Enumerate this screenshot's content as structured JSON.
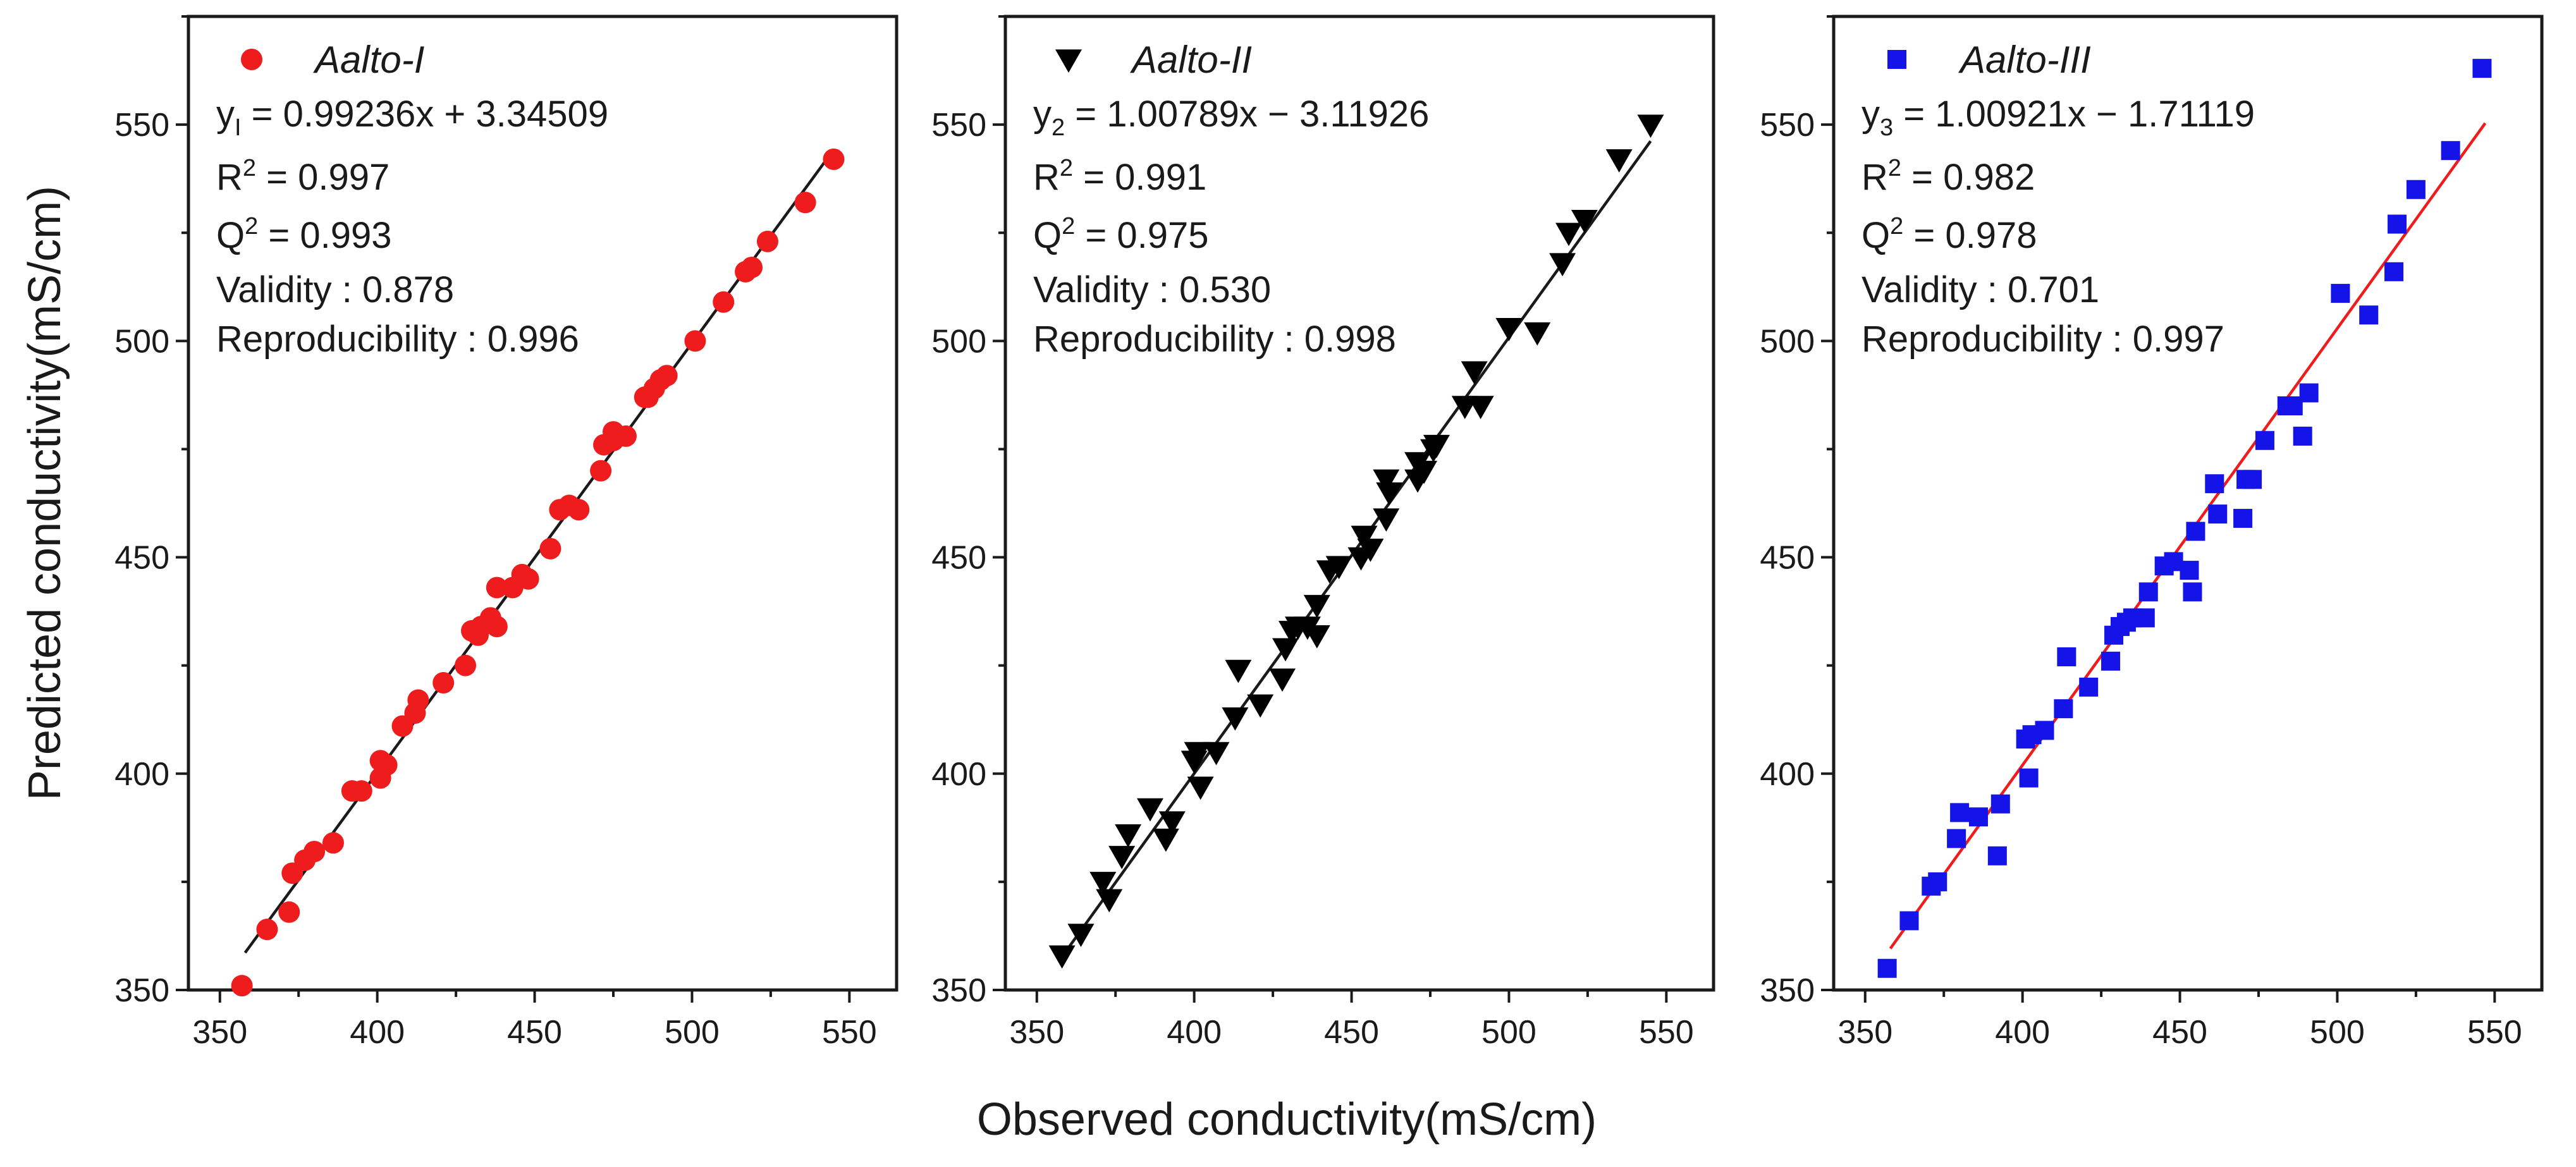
{
  "figure": {
    "xlabel": "Observed conductivity(mS/cm)",
    "ylabel": "Predicted conductivity(mS/cm)"
  },
  "chart_data": [
    {
      "type": "scatter",
      "name": "Aalto-I",
      "legend_label": "Aalto-I",
      "marker": "circle",
      "color": "#ee1c1c",
      "fit_color": "#1a1a1a",
      "xlim": [
        340,
        565
      ],
      "ylim": [
        350,
        575
      ],
      "xticks": [
        350,
        400,
        450,
        500,
        550
      ],
      "yticks": [
        350,
        400,
        450,
        500,
        550
      ],
      "fit": {
        "slope": 0.99236,
        "intercept": 3.34509,
        "x_range": [
          358,
          545
        ]
      },
      "stats": {
        "equation_var": "y",
        "equation_sub": "I",
        "equation_rhs": " = 0.99236x + 3.34509",
        "r2_label": "R",
        "r2_value": " = 0.997",
        "q2_label": "Q",
        "q2_value": " = 0.993",
        "validity": "Validity : 0.878",
        "reproducibility": "Reproducibility : 0.996"
      },
      "points": [
        [
          357,
          351
        ],
        [
          365,
          364
        ],
        [
          372,
          368
        ],
        [
          373,
          377
        ],
        [
          377,
          380
        ],
        [
          380,
          382
        ],
        [
          386,
          384
        ],
        [
          392,
          396
        ],
        [
          395,
          396
        ],
        [
          401,
          399
        ],
        [
          401,
          403
        ],
        [
          403,
          402
        ],
        [
          408,
          411
        ],
        [
          412,
          414
        ],
        [
          413,
          417
        ],
        [
          421,
          421
        ],
        [
          428,
          425
        ],
        [
          430,
          433
        ],
        [
          432,
          432
        ],
        [
          433,
          434
        ],
        [
          436,
          436
        ],
        [
          438,
          434
        ],
        [
          438,
          443
        ],
        [
          443,
          443
        ],
        [
          446,
          446
        ],
        [
          448,
          445
        ],
        [
          455,
          452
        ],
        [
          458,
          461
        ],
        [
          461,
          462
        ],
        [
          464,
          461
        ],
        [
          471,
          470
        ],
        [
          472,
          476
        ],
        [
          475,
          479
        ],
        [
          475,
          477
        ],
        [
          479,
          478
        ],
        [
          485,
          487
        ],
        [
          486,
          487
        ],
        [
          488,
          489
        ],
        [
          490,
          491
        ],
        [
          492,
          492
        ],
        [
          501,
          500
        ],
        [
          510,
          509
        ],
        [
          517,
          516
        ],
        [
          519,
          517
        ],
        [
          524,
          523
        ],
        [
          536,
          532
        ],
        [
          545,
          542
        ]
      ]
    },
    {
      "type": "scatter",
      "name": "Aalto-II",
      "legend_label": "Aalto-II",
      "marker": "triangle-down",
      "color": "#000000",
      "fit_color": "#1a1a1a",
      "xlim": [
        340,
        565
      ],
      "ylim": [
        350,
        575
      ],
      "xticks": [
        350,
        400,
        450,
        500,
        550
      ],
      "yticks": [
        350,
        400,
        450,
        500,
        550
      ],
      "fit": {
        "slope": 1.00789,
        "intercept": -3.11926,
        "x_range": [
          358,
          545
        ]
      },
      "stats": {
        "equation_var": "y",
        "equation_sub": "2",
        "equation_rhs": " = 1.00789x − 3.11926",
        "r2_label": "R",
        "r2_value": " = 0.991",
        "q2_label": "Q",
        "q2_value": " = 0.975",
        "validity": "Validity : 0.530",
        "reproducibility": "Reproducibility : 0.998"
      },
      "points": [
        [
          358,
          358
        ],
        [
          364,
          363
        ],
        [
          371,
          375
        ],
        [
          373,
          371
        ],
        [
          377,
          381
        ],
        [
          379,
          386
        ],
        [
          386,
          392
        ],
        [
          391,
          385
        ],
        [
          393,
          389
        ],
        [
          400,
          403
        ],
        [
          401,
          405
        ],
        [
          402,
          397
        ],
        [
          407,
          405
        ],
        [
          413,
          413
        ],
        [
          414,
          424
        ],
        [
          421,
          416
        ],
        [
          428,
          422
        ],
        [
          429,
          429
        ],
        [
          431,
          433
        ],
        [
          433,
          434
        ],
        [
          436,
          434
        ],
        [
          439,
          432
        ],
        [
          439,
          439
        ],
        [
          443,
          447
        ],
        [
          446,
          448
        ],
        [
          453,
          450
        ],
        [
          454,
          455
        ],
        [
          456,
          452
        ],
        [
          461,
          459
        ],
        [
          461,
          468
        ],
        [
          462,
          465
        ],
        [
          471,
          468
        ],
        [
          471,
          472
        ],
        [
          473,
          470
        ],
        [
          476,
          475
        ],
        [
          477,
          476
        ],
        [
          486,
          485
        ],
        [
          489,
          493
        ],
        [
          491,
          485
        ],
        [
          500,
          503
        ],
        [
          509,
          502
        ],
        [
          517,
          518
        ],
        [
          519,
          525
        ],
        [
          524,
          528
        ],
        [
          535,
          542
        ],
        [
          545,
          550
        ]
      ]
    },
    {
      "type": "scatter",
      "name": "Aalto-III",
      "legend_label": "Aalto-III",
      "marker": "square",
      "color": "#1414e8",
      "fit_color": "#ee1c1c",
      "xlim": [
        340,
        565
      ],
      "ylim": [
        350,
        575
      ],
      "xticks": [
        350,
        400,
        450,
        500,
        550
      ],
      "yticks": [
        350,
        400,
        450,
        500,
        550
      ],
      "fit": {
        "slope": 1.00921,
        "intercept": -1.71119,
        "x_range": [
          358,
          547
        ]
      },
      "stats": {
        "equation_var": "y",
        "equation_sub": "3",
        "equation_rhs": " = 1.00921x − 1.71119",
        "r2_label": "R",
        "r2_value": " = 0.982",
        "q2_label": "Q",
        "q2_value": " = 0.978",
        "validity": "Validity : 0.701",
        "reproducibility": "Reproducibility : 0.997"
      },
      "points": [
        [
          357,
          355
        ],
        [
          364,
          366
        ],
        [
          371,
          374
        ],
        [
          373,
          375
        ],
        [
          379,
          385
        ],
        [
          380,
          391
        ],
        [
          386,
          390
        ],
        [
          392,
          381
        ],
        [
          393,
          393
        ],
        [
          401,
          408
        ],
        [
          402,
          399
        ],
        [
          403,
          409
        ],
        [
          407,
          410
        ],
        [
          413,
          415
        ],
        [
          414,
          427
        ],
        [
          421,
          420
        ],
        [
          428,
          426
        ],
        [
          429,
          432
        ],
        [
          431,
          434
        ],
        [
          433,
          435
        ],
        [
          435,
          436
        ],
        [
          439,
          436
        ],
        [
          440,
          442
        ],
        [
          445,
          448
        ],
        [
          448,
          449
        ],
        [
          453,
          447
        ],
        [
          454,
          442
        ],
        [
          455,
          456
        ],
        [
          461,
          467
        ],
        [
          462,
          460
        ],
        [
          470,
          459
        ],
        [
          471,
          468
        ],
        [
          473,
          468
        ],
        [
          477,
          477
        ],
        [
          484,
          485
        ],
        [
          486,
          485
        ],
        [
          489,
          478
        ],
        [
          491,
          488
        ],
        [
          501,
          511
        ],
        [
          510,
          506
        ],
        [
          518,
          516
        ],
        [
          519,
          527
        ],
        [
          525,
          535
        ],
        [
          536,
          544
        ],
        [
          546,
          563
        ]
      ]
    }
  ]
}
